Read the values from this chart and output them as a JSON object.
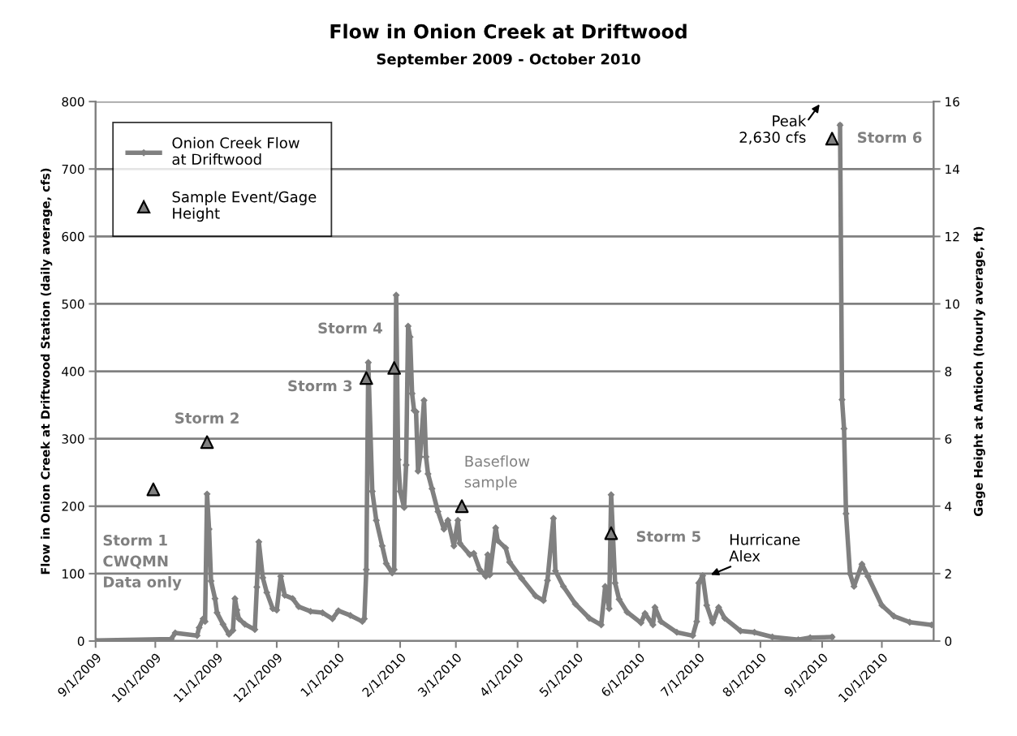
{
  "chart_data": {
    "type": "line",
    "title": "Flow in Onion Creek at Driftwood",
    "subtitle": "September 2009 - October 2010",
    "ylabel": "Flow in Onion Creek at Driftwood Station (daily average, cfs)",
    "y2label": "Gage Height at Antioch (hourly average, ft)",
    "xlim": [
      "2009-09-01",
      "2010-10-27"
    ],
    "xticks": [
      {
        "value": "2009-09-01",
        "label": "9/1/2009"
      },
      {
        "value": "2009-10-01",
        "label": "10/1/2009"
      },
      {
        "value": "2009-11-01",
        "label": "11/1/2009"
      },
      {
        "value": "2009-12-01",
        "label": "12/1/2009"
      },
      {
        "value": "2010-01-01",
        "label": "1/1/2010"
      },
      {
        "value": "2010-02-01",
        "label": "2/1/2010"
      },
      {
        "value": "2010-03-01",
        "label": "3/1/2010"
      },
      {
        "value": "2010-04-01",
        "label": "4/1/2010"
      },
      {
        "value": "2010-05-01",
        "label": "5/1/2010"
      },
      {
        "value": "2010-06-01",
        "label": "6/1/2010"
      },
      {
        "value": "2010-07-01",
        "label": "7/1/2010"
      },
      {
        "value": "2010-08-01",
        "label": "8/1/2010"
      },
      {
        "value": "2010-09-01",
        "label": "9/1/2010"
      },
      {
        "value": "2010-10-01",
        "label": "10/1/2010"
      }
    ],
    "ylim": [
      0,
      800
    ],
    "yticks": [
      0,
      100,
      200,
      300,
      400,
      500,
      600,
      700,
      800
    ],
    "y2lim": [
      0,
      16
    ],
    "y2ticks": [
      0,
      2,
      4,
      6,
      8,
      10,
      12,
      14,
      16
    ],
    "grid": "y",
    "legend": "top left",
    "line_style": "solid",
    "series": [
      {
        "name": "Onion Creek Flow\nat Driftwood",
        "color": "#808080",
        "marker": "diamond",
        "x": [
          "2009-09-01",
          "2009-10-09",
          "2009-10-11",
          "2009-10-22",
          "2009-10-23",
          "2009-10-25",
          "2009-10-26",
          "2009-10-27",
          "2009-10-28",
          "2009-10-29",
          "2009-10-31",
          "2009-11-01",
          "2009-11-04",
          "2009-11-07",
          "2009-11-09",
          "2009-11-10",
          "2009-11-11",
          "2009-11-12",
          "2009-11-15",
          "2009-11-20",
          "2009-11-21",
          "2009-11-22",
          "2009-11-24",
          "2009-11-26",
          "2009-11-29",
          "2009-12-01",
          "2009-12-03",
          "2009-12-05",
          "2009-12-09",
          "2009-12-12",
          "2009-12-18",
          "2009-12-24",
          "2009-12-29",
          "2010-01-01",
          "2010-01-07",
          "2010-01-13",
          "2010-01-14",
          "2010-01-15",
          "2010-01-16",
          "2010-01-18",
          "2010-01-20",
          "2010-01-23",
          "2010-01-25",
          "2010-01-28",
          "2010-01-29",
          "2010-01-30",
          "2010-01-31",
          "2010-02-01",
          "2010-02-03",
          "2010-02-04",
          "2010-02-05",
          "2010-02-06",
          "2010-02-07",
          "2010-02-08",
          "2010-02-09",
          "2010-02-10",
          "2010-02-11",
          "2010-02-13",
          "2010-02-14",
          "2010-02-15",
          "2010-02-17",
          "2010-02-20",
          "2010-02-23",
          "2010-02-25",
          "2010-02-28",
          "2010-03-02",
          "2010-03-03",
          "2010-03-08",
          "2010-03-10",
          "2010-03-13",
          "2010-03-16",
          "2010-03-17",
          "2010-03-18",
          "2010-03-21",
          "2010-03-22",
          "2010-03-26",
          "2010-03-28",
          "2010-04-03",
          "2010-04-10",
          "2010-04-14",
          "2010-04-16",
          "2010-04-19",
          "2010-04-20",
          "2010-04-24",
          "2010-04-30",
          "2010-05-07",
          "2010-05-13",
          "2010-05-15",
          "2010-05-17",
          "2010-05-18",
          "2010-05-20",
          "2010-05-22",
          "2010-05-26",
          "2010-06-02",
          "2010-06-04",
          "2010-06-08",
          "2010-06-09",
          "2010-06-12",
          "2010-06-20",
          "2010-06-28",
          "2010-06-30",
          "2010-07-01",
          "2010-07-03",
          "2010-07-05",
          "2010-07-08",
          "2010-07-11",
          "2010-07-14",
          "2010-07-22",
          "2010-07-29",
          "2010-08-07",
          "2010-08-20",
          "2010-08-26",
          "2010-09-06",
          "2010-09-07",
          "2010-09-10",
          "2010-09-11",
          "2010-09-12",
          "2010-09-13",
          "2010-09-15",
          "2010-09-17",
          "2010-09-21",
          "2010-09-24",
          "2010-10-01",
          "2010-10-07",
          "2010-10-15",
          "2010-10-26"
        ],
        "values": [
          1,
          3,
          12,
          8,
          20,
          33,
          29,
          218,
          166,
          89,
          63,
          42,
          25,
          10,
          16,
          63,
          46,
          33,
          25,
          17,
          80,
          147,
          94,
          72,
          48,
          46,
          96,
          68,
          63,
          51,
          44,
          42,
          33,
          45,
          38,
          29,
          33,
          106,
          413,
          222,
          179,
          141,
          115,
          101,
          106,
          513,
          269,
          222,
          198,
          261,
          467,
          451,
          367,
          342,
          340,
          252,
          273,
          357,
          273,
          248,
          226,
          192,
          166,
          179,
          141,
          179,
          145,
          128,
          130,
          106,
          96,
          128,
          98,
          168,
          149,
          138,
          117,
          93,
          67,
          60,
          90,
          182,
          104,
          81,
          55,
          34,
          24,
          81,
          48,
          217,
          86,
          62,
          43,
          27,
          41,
          24,
          50,
          29,
          13,
          8,
          29,
          86,
          97,
          53,
          27,
          50,
          34,
          15,
          13,
          6,
          2,
          5,
          6,
          null,
          765,
          358,
          315,
          189,
          100,
          81,
          114,
          96,
          53,
          37,
          28,
          24
        ]
      },
      {
        "name": "Sample Event/Gage\nHeight",
        "type": "scatter",
        "axis": "y2",
        "color": "#808080",
        "marker": "triangle",
        "x": [
          "2009-09-30",
          "2009-10-27",
          "2010-01-15",
          "2010-01-29",
          "2010-03-04",
          "2010-05-18",
          "2010-09-06"
        ],
        "values": [
          4.5,
          5.9,
          7.8,
          8.1,
          4.0,
          3.2,
          14.9
        ]
      }
    ],
    "annotations": [
      "Storm 1\nCWQMN\nData only",
      "Storm 2",
      "Storm 3",
      "Storm 4",
      "Baseflow\nsample",
      "Storm 5",
      "Storm 6",
      "Peak\n2,630 cfs",
      {
        "text": "Hurricane\nAlex",
        "x": "2010-07-03",
        "y": 97
      }
    ]
  }
}
